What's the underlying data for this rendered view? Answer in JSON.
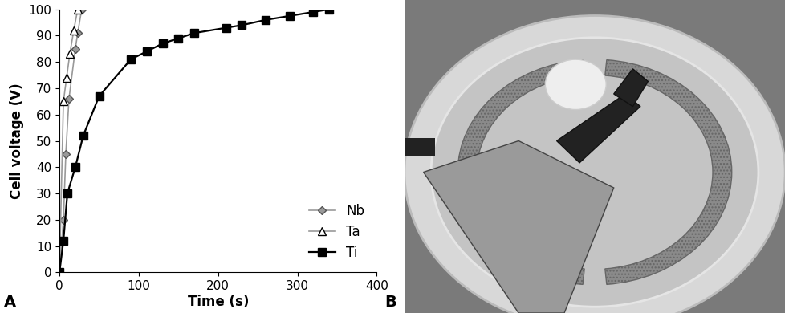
{
  "chart_data": {
    "type": "line",
    "x_label": "Time (s)",
    "y_label": "Cell voltage (V)",
    "annotations": [
      "A"
    ],
    "series": [
      {
        "name": "Nb",
        "color": "#999999",
        "marker": "diamond",
        "line_style": "solid",
        "x": [
          0,
          5,
          8,
          12,
          20,
          23,
          28
        ],
        "values": [
          0,
          20,
          45,
          66,
          85,
          91,
          100
        ]
      },
      {
        "name": "Ta",
        "color": "#999999",
        "marker": "triangle_open",
        "line_style": "solid",
        "x": [
          0,
          5,
          9,
          13,
          18,
          23
        ],
        "values": [
          0,
          65,
          74,
          83,
          92,
          100
        ]
      },
      {
        "name": "Ti",
        "color": "#000000",
        "marker": "square",
        "line_style": "solid",
        "x": [
          0,
          5,
          10,
          20,
          30,
          50,
          90,
          110,
          130,
          150,
          170,
          210,
          230,
          260,
          290,
          320,
          340
        ],
        "values": [
          0,
          12,
          30,
          40,
          52,
          67,
          81,
          84,
          87,
          89,
          91,
          93,
          94,
          96,
          97.5,
          99,
          100
        ]
      }
    ],
    "xlim": [
      0,
      400
    ],
    "xticks": [
      0,
      100,
      200,
      300,
      400
    ],
    "ylim": [
      0,
      100
    ],
    "yticks": [
      0,
      10,
      20,
      30,
      40,
      50,
      60,
      70,
      80,
      90,
      100
    ],
    "grid": false,
    "legend": "lower right"
  },
  "photo": {
    "label": "B"
  }
}
